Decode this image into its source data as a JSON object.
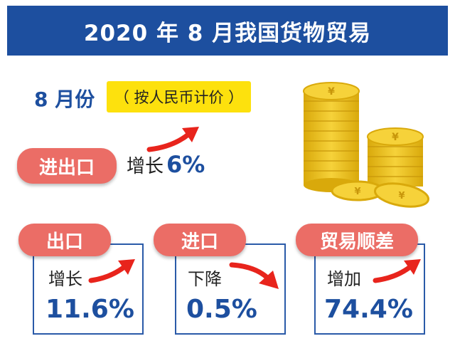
{
  "title": "2020 年 8 月我国货物贸易",
  "month_label": "8 月份",
  "basis_note": "（ 按人民币计价 ）",
  "total": {
    "label": "进出口",
    "trend": "增长",
    "value": "6%"
  },
  "cards": [
    {
      "label": "出口",
      "trend": "增长",
      "value": "11.6%",
      "direction": "up"
    },
    {
      "label": "进口",
      "trend": "下降",
      "value": "0.5%",
      "direction": "down"
    },
    {
      "label": "贸易顺差",
      "trend": "增加",
      "value": "74.4%",
      "direction": "up"
    }
  ],
  "colors": {
    "banner": "#1d4f9f",
    "accent_red": "#eb6d66",
    "yellow": "#fde10d",
    "value_blue": "#1d4f9f",
    "coin_gold": "#f2c21d"
  },
  "icons": {
    "coins": "yuan-coin-stack-icon",
    "arrow_up": "arrow-up-right-icon",
    "arrow_down": "arrow-down-right-icon"
  }
}
